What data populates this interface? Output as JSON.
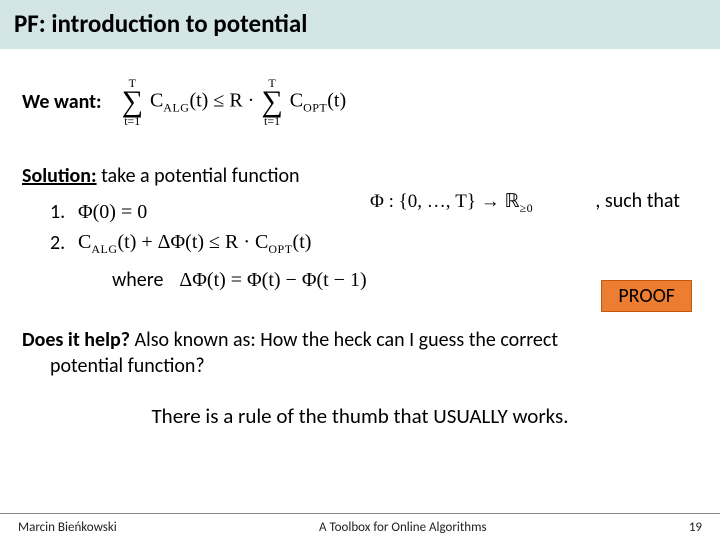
{
  "colors": {
    "title_bg": "#d4e5e5",
    "proof_bg": "#ed7d31",
    "proof_border": "#c05a12",
    "text": "#000000",
    "bg": "#ffffff",
    "footer_rule": "#888888"
  },
  "title": "PF: introduction to potential",
  "want_label": "We want:",
  "want_formula": {
    "sum1_top": "T",
    "sum1_bot": "t=1",
    "C_alg": "C",
    "alg_sub": "ALG",
    "of_t": "(t)",
    "leq": " ≤ ",
    "R_dot": "R · ",
    "sum2_top": "T",
    "sum2_bot": "t=1",
    "C_opt": "C",
    "opt_sub": "OPT"
  },
  "solution_label": "Solution:",
  "solution_rest": " take a potential function",
  "phi_domain": "Φ : {0, …, T} → ℝ",
  "phi_domain_sub": "≥0",
  "such_that": " , such that",
  "item1_num": "1.",
  "item1_text": "Φ(0) = 0",
  "item2_num": "2.",
  "item2_text_Calg": "C",
  "item2_text_algsub": "ALG",
  "item2_mid": "(t) + ΔΦ(t) ≤ R · C",
  "item2_text_optsub": "OPT",
  "item2_tail": "(t)",
  "where_label": "where",
  "where_formula": "ΔΦ(t) = Φ(t) − Φ(t − 1)",
  "proof_badge": "PROOF",
  "help_lead": "Does it help? ",
  "help_rest1": "Also known as: How the heck can I guess the correct",
  "help_rest2": "potential function?",
  "rule_text": "There is a rule of the thumb that USUALLY works.",
  "footer": {
    "author": "Marcin Bieńkowski",
    "talk": "A Toolbox for Online Algorithms",
    "page": "19"
  }
}
